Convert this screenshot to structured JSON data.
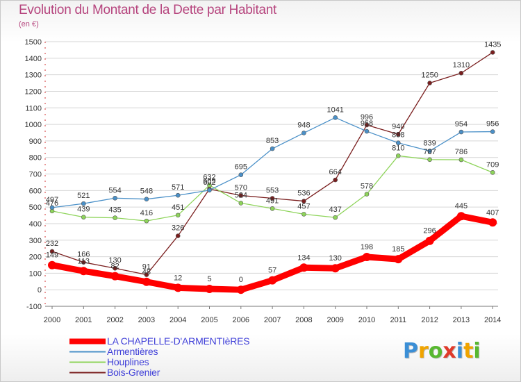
{
  "header": {
    "title": "Evolution du Montant de la Dette par Habitant",
    "unit": "(en €)"
  },
  "logo": {
    "text": "Proxiti",
    "letters": [
      {
        "ch": "P",
        "color": "#3b8fd6"
      },
      {
        "ch": "r",
        "color": "#f0a400"
      },
      {
        "ch": "o",
        "color": "#58b830"
      },
      {
        "ch": "x",
        "color": "#e03a2a"
      },
      {
        "ch": "i",
        "color": "#3b8fd6"
      },
      {
        "ch": "t",
        "color": "#f0a400"
      },
      {
        "ch": "i",
        "color": "#58b830"
      }
    ]
  },
  "chart_data": {
    "type": "line",
    "title": "Evolution du Montant de la Dette par Habitant",
    "ylabel": "(en €)",
    "xlabel": "",
    "x": [
      "2000",
      "2001",
      "2002",
      "2003",
      "2004",
      "2005",
      "2006",
      "2007",
      "2008",
      "2009",
      "2010",
      "2011",
      "2012",
      "2013",
      "2014"
    ],
    "ylim": [
      -100,
      1500
    ],
    "yticks": [
      "-100",
      "0",
      "100",
      "200",
      "300",
      "400",
      "500",
      "600",
      "700",
      "800",
      "900",
      "1000",
      "1100",
      "1200",
      "1300",
      "1400",
      "1500"
    ],
    "grid": "horizontal",
    "legend": "bottom-left",
    "series": [
      {
        "name": "LA CHAPELLE-D'ARMENTIèRES",
        "color": "#ff0000",
        "values": [
          149,
          113,
          82,
          48,
          12,
          5,
          0,
          57,
          134,
          130,
          198,
          185,
          296,
          445,
          407
        ],
        "labels": [
          "149",
          "113",
          "82",
          "48",
          "12",
          "5",
          "0",
          "57",
          "134",
          "130",
          "198",
          "185",
          "296",
          "445",
          "407"
        ]
      },
      {
        "name": "Armentières",
        "color": "#4a90c8",
        "values": [
          497,
          521,
          554,
          548,
          571,
          602,
          695,
          853,
          948,
          1041,
          958,
          888,
          839,
          954,
          956
        ],
        "labels": [
          "497",
          "521",
          "554",
          "548",
          "571",
          "602",
          "695",
          "853",
          "948",
          "1041",
          "958",
          "888",
          "839",
          "954",
          "956"
        ]
      },
      {
        "name": "Houplines",
        "color": "#8ed45a",
        "values": [
          476,
          439,
          435,
          416,
          451,
          632,
          524,
          491,
          457,
          437,
          578,
          810,
          787,
          786,
          709
        ],
        "labels": [
          "476",
          "439",
          "435",
          "416",
          "451",
          "632",
          "524",
          "491",
          "457",
          "437",
          "578",
          "810",
          "787",
          "786",
          "709"
        ]
      },
      {
        "name": "Bois-Grenier",
        "color": "#7a1e1e",
        "values": [
          232,
          166,
          130,
          91,
          326,
          609,
          570,
          553,
          536,
          664,
          996,
          940,
          1250,
          1310,
          1435
        ],
        "labels": [
          "232",
          "166",
          "130",
          "91",
          "326",
          "609",
          "570",
          "553",
          "536",
          "664",
          "996",
          "940",
          "1250",
          "1310",
          "1435"
        ]
      }
    ]
  }
}
